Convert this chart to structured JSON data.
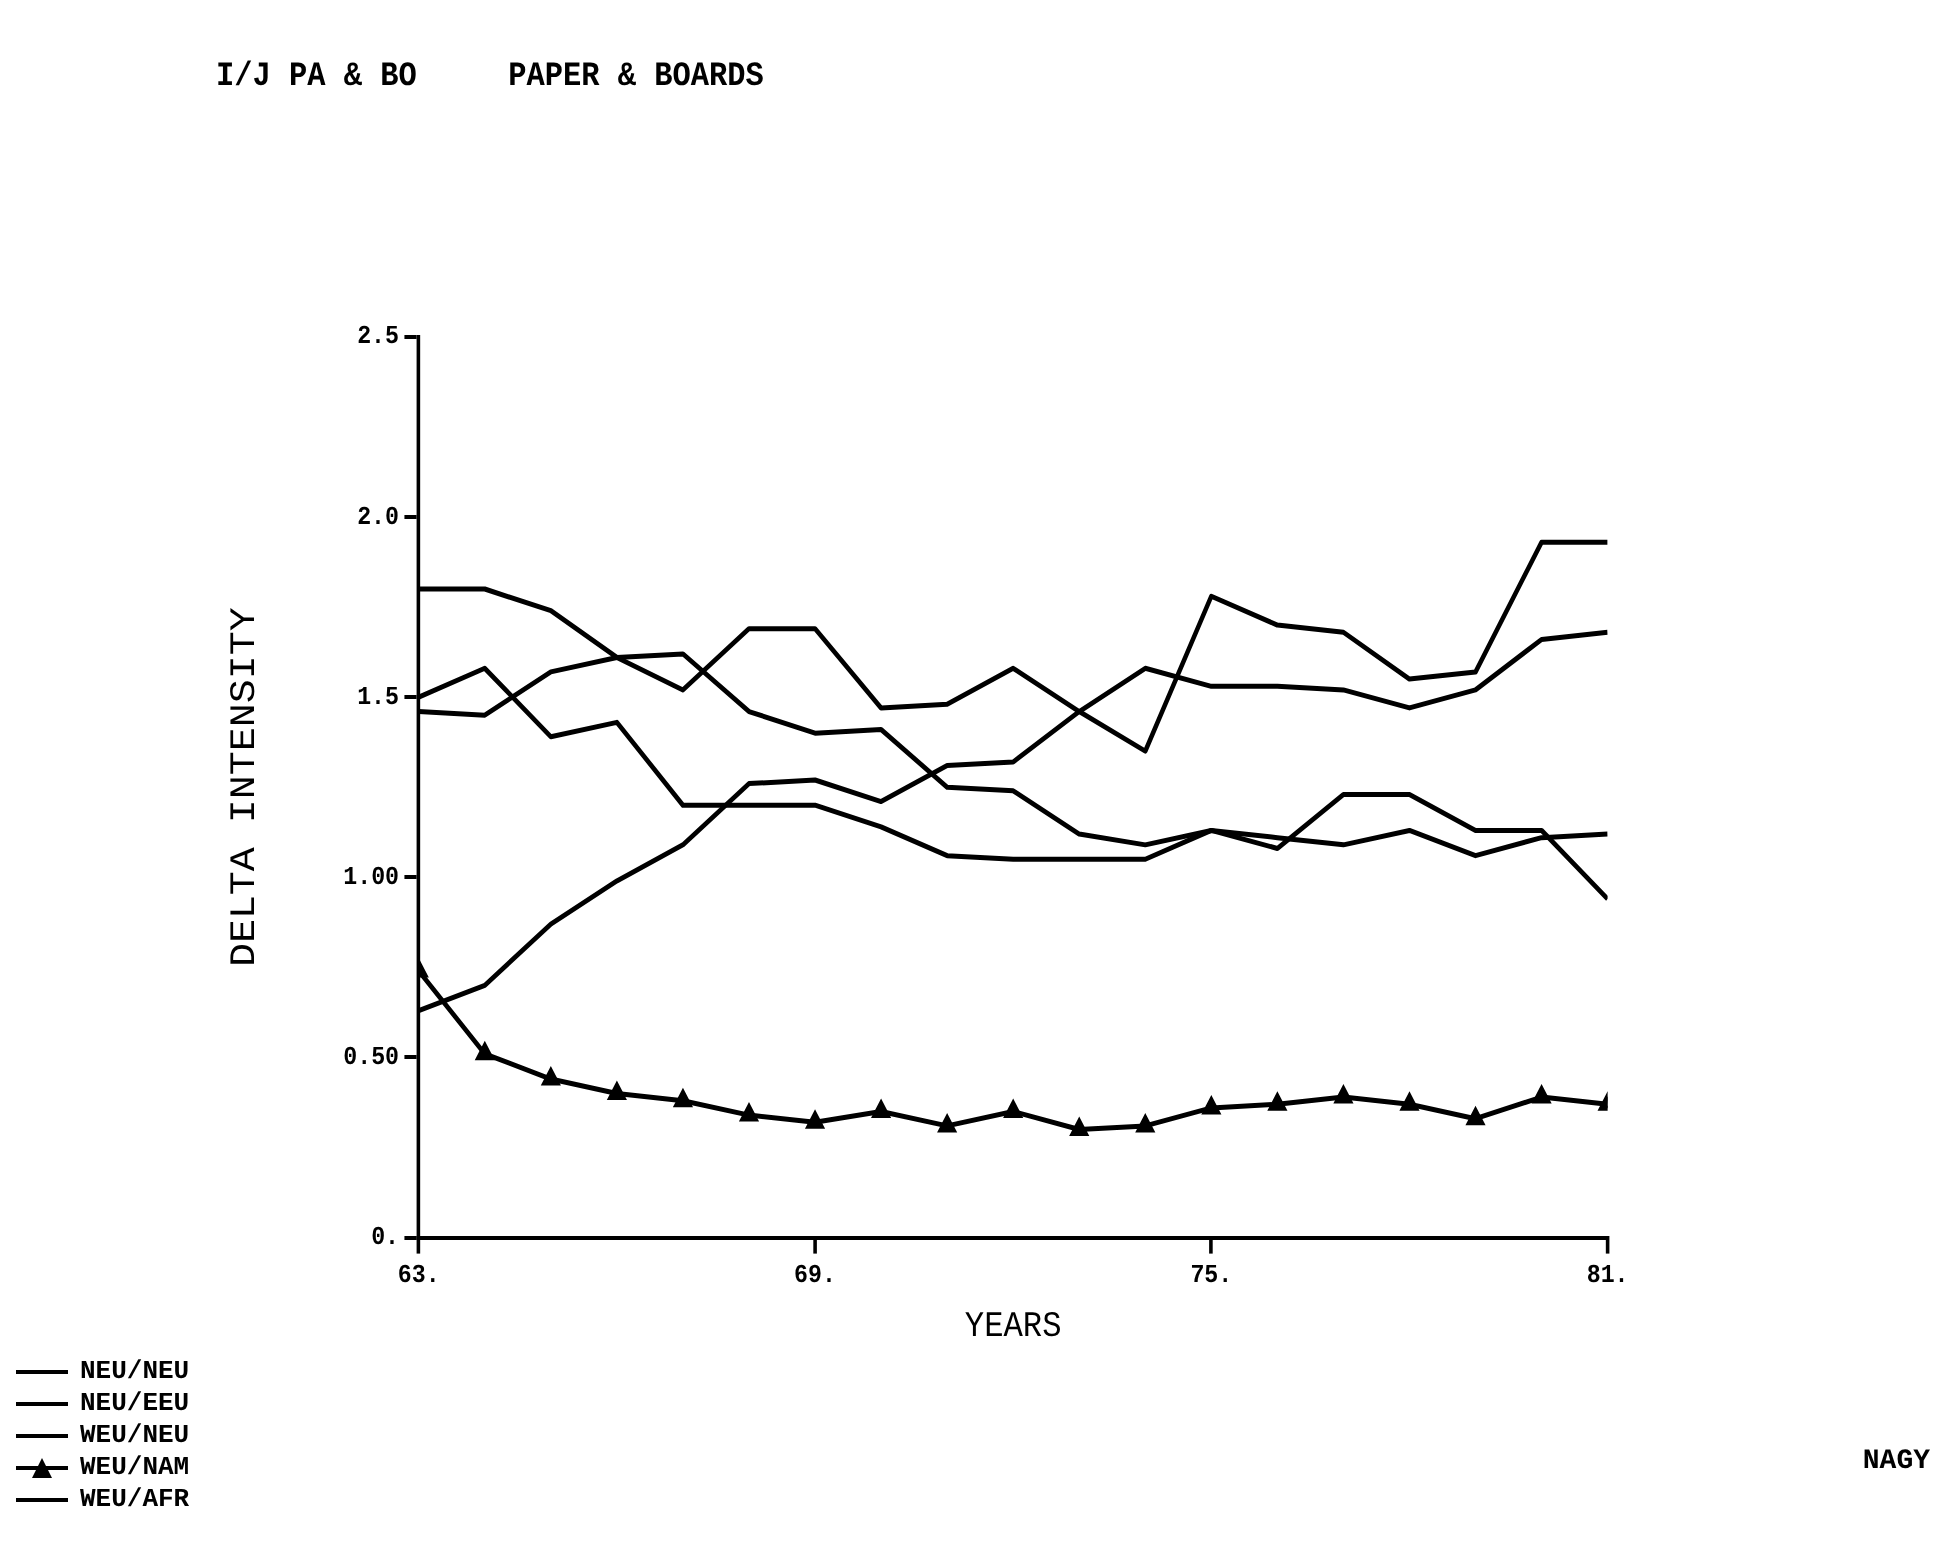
{
  "chart_data": {
    "type": "line",
    "title": "I/J PA & BO     PAPER & BOARDS",
    "xlabel": "YEARS",
    "ylabel": "DELTA INTENSITY",
    "x": [
      63,
      64,
      65,
      66,
      67,
      68,
      69,
      70,
      71,
      72,
      73,
      74,
      75,
      76,
      77,
      78,
      79,
      80,
      81
    ],
    "xlim": [
      63,
      81
    ],
    "xticks": [
      {
        "value": 63,
        "label": "63."
      },
      {
        "value": 69,
        "label": "69."
      },
      {
        "value": 75,
        "label": "75."
      },
      {
        "value": 81,
        "label": "81."
      }
    ],
    "ylim": [
      0,
      2.5
    ],
    "yticks": [
      {
        "value": 0,
        "label": "0."
      },
      {
        "value": 0.5,
        "label": "0.50"
      },
      {
        "value": 1,
        "label": "1.00"
      },
      1.5,
      {
        "value": 2,
        "label": "2.0"
      },
      2.5
    ],
    "grid": false,
    "legend": "bottom left",
    "line_style": "solid",
    "series": [
      {
        "name": "NEU/NEU",
        "color": "#000000",
        "values": [
          0.63,
          0.7,
          0.87,
          0.99,
          1.09,
          1.26,
          1.27,
          1.21,
          1.31,
          1.32,
          1.46,
          1.58,
          1.53,
          1.53,
          1.52,
          1.47,
          1.52,
          1.66,
          1.68
        ]
      },
      {
        "name": "NEU/EEU",
        "color": "#000000",
        "values": [
          1.8,
          1.8,
          1.74,
          1.61,
          1.52,
          1.69,
          1.69,
          1.47,
          1.48,
          1.58,
          1.46,
          1.35,
          1.78,
          1.7,
          1.68,
          1.55,
          1.57,
          1.93,
          1.93
        ]
      },
      {
        "name": "WEU/NEU",
        "color": "#000000",
        "values": [
          1.46,
          1.45,
          1.57,
          1.61,
          1.62,
          1.46,
          1.4,
          1.41,
          1.25,
          1.24,
          1.12,
          1.09,
          1.13,
          1.11,
          1.09,
          1.13,
          1.06,
          1.11,
          1.12
        ]
      },
      {
        "name": "WEU/NAM",
        "color": "#000000",
        "marker": "triangle",
        "values": [
          0.74,
          0.51,
          0.44,
          0.4,
          0.38,
          0.34,
          0.32,
          0.35,
          0.31,
          0.35,
          0.3,
          0.31,
          0.36,
          0.37,
          0.39,
          0.37,
          0.33,
          0.39,
          0.37
        ]
      },
      {
        "name": "WEU/AFR",
        "color": "#000000",
        "values": [
          1.5,
          1.58,
          1.39,
          1.43,
          1.2,
          1.2,
          1.2,
          1.14,
          1.06,
          1.05,
          1.05,
          1.05,
          1.13,
          1.08,
          1.23,
          1.23,
          1.13,
          1.13,
          0.94
        ]
      }
    ],
    "annotations": [
      "NAGY"
    ]
  }
}
